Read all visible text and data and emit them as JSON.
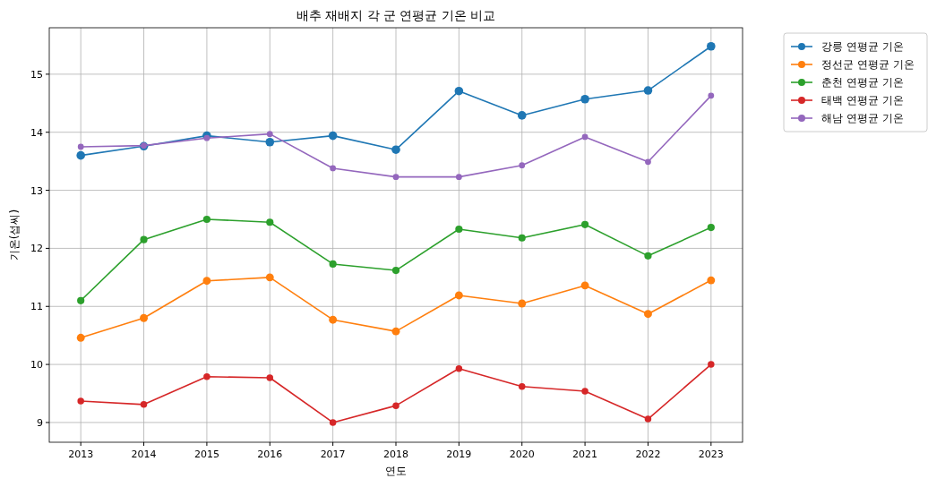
{
  "chart_data": {
    "type": "line",
    "title": "배추 재배지 각 군 연평균 기온 비교",
    "xlabel": "연도",
    "ylabel": "기온(섭씨)",
    "x": [
      2013,
      2014,
      2015,
      2016,
      2017,
      2018,
      2019,
      2020,
      2021,
      2022,
      2023
    ],
    "xlim": [
      2012.5,
      2023.5
    ],
    "xticks": [
      2013,
      2014,
      2015,
      2016,
      2017,
      2018,
      2019,
      2020,
      2021,
      2022,
      2023
    ],
    "ylim": [
      8.66,
      15.8
    ],
    "yticks": [
      9,
      10,
      11,
      12,
      13,
      14,
      15
    ],
    "grid": true,
    "legend": "right",
    "marker": "circle",
    "line_style": "solid",
    "series": [
      {
        "name": "강릉 연평균 기온",
        "color": "#1f77b4",
        "values": [
          13.6,
          13.76,
          13.94,
          13.83,
          13.94,
          13.7,
          14.71,
          14.29,
          14.57,
          14.72,
          15.48
        ]
      },
      {
        "name": "정선군 연평균 기온",
        "color": "#ff7f0e",
        "values": [
          10.46,
          10.8,
          11.44,
          11.5,
          10.77,
          10.57,
          11.19,
          11.05,
          11.36,
          10.87,
          11.45
        ]
      },
      {
        "name": "춘천 연평균 기온",
        "color": "#2ca02c",
        "values": [
          11.1,
          12.15,
          12.5,
          12.45,
          11.73,
          11.62,
          12.33,
          12.18,
          12.41,
          11.87,
          12.36
        ]
      },
      {
        "name": "태백 연평균 기온",
        "color": "#d62728",
        "values": [
          9.37,
          9.31,
          9.79,
          9.77,
          9.0,
          9.29,
          9.93,
          9.62,
          9.54,
          9.06,
          10.0
        ]
      },
      {
        "name": "해남 연평균 기온",
        "color": "#9467bd",
        "values": [
          13.75,
          13.77,
          13.9,
          13.97,
          13.38,
          13.23,
          13.23,
          13.43,
          13.92,
          13.49,
          14.63
        ]
      }
    ]
  }
}
